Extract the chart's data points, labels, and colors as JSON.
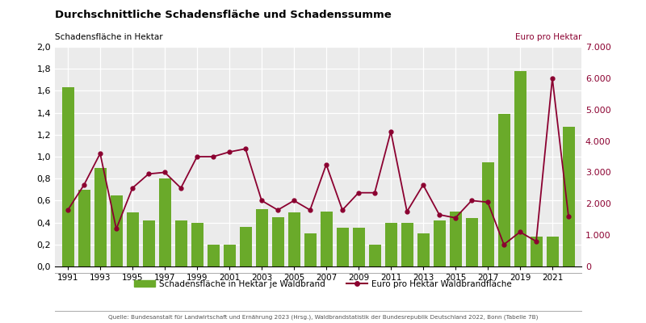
{
  "title": "Durchschnittliche Schadensfläche und Schadenssumme",
  "ylabel_left": "Schadensfläche in Hektar",
  "ylabel_right": "Euro pro Hektar",
  "legend_bar": "Schadensfläche in Hektar je Waldbrand",
  "legend_line": "Euro pro Hektar Waldbrandfläche",
  "source": "Quelle: Bundesanstalt für Landwirtschaft und Ernährung 2023 (Hrsg.), Waldbrandstatistik der Bundesrepublik Deutschland 2022, Bonn (Tabelle 7B)",
  "years": [
    1991,
    1992,
    1993,
    1994,
    1995,
    1996,
    1997,
    1998,
    1999,
    2000,
    2001,
    2002,
    2003,
    2004,
    2005,
    2006,
    2007,
    2008,
    2009,
    2010,
    2011,
    2012,
    2013,
    2014,
    2015,
    2016,
    2017,
    2018,
    2019,
    2020,
    2021,
    2022
  ],
  "bar_values": [
    1.63,
    0.7,
    0.9,
    0.65,
    0.49,
    0.42,
    0.8,
    0.42,
    0.4,
    0.2,
    0.2,
    0.36,
    0.52,
    0.45,
    0.49,
    0.3,
    0.5,
    0.35,
    0.35,
    0.2,
    0.4,
    0.4,
    0.3,
    0.42,
    0.5,
    0.44,
    0.95,
    1.39,
    1.78,
    0.27,
    0.27,
    1.27
  ],
  "line_values": [
    1800,
    2600,
    3600,
    1200,
    2500,
    2950,
    3000,
    2500,
    3500,
    3500,
    3650,
    3750,
    2100,
    1800,
    2100,
    1800,
    3250,
    1800,
    2350,
    2350,
    4300,
    1750,
    2600,
    1650,
    1550,
    2100,
    2050,
    700,
    1100,
    800,
    6000,
    1600
  ],
  "bar_color": "#6aaa2a",
  "line_color": "#8b0030",
  "ylim_left": [
    0,
    2.0
  ],
  "ylim_right": [
    0,
    7000
  ],
  "yticks_left": [
    0.0,
    0.2,
    0.4,
    0.6,
    0.8,
    1.0,
    1.2,
    1.4,
    1.6,
    1.8,
    2.0
  ],
  "yticks_right": [
    0,
    1000,
    2000,
    3000,
    4000,
    5000,
    6000,
    7000
  ],
  "background_color": "#ebebeb"
}
